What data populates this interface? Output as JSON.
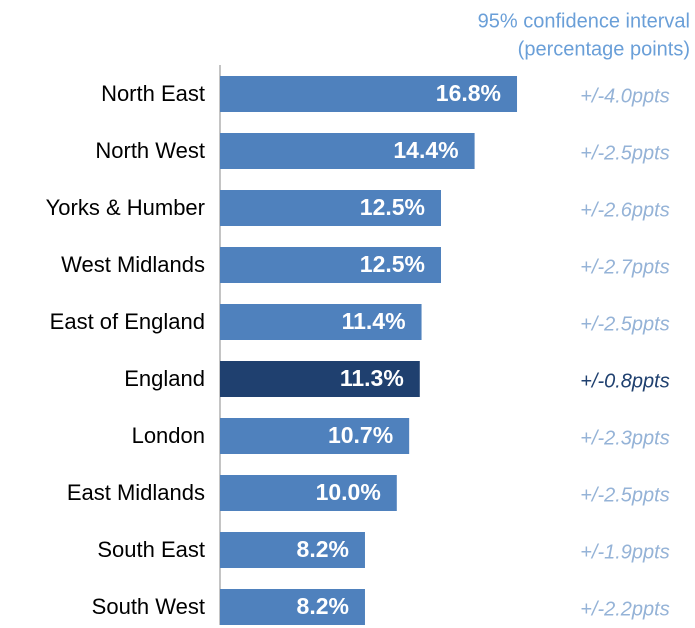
{
  "chart_data": {
    "type": "bar",
    "orientation": "horizontal",
    "subtitle": [
      "95% confidence interval",
      "(percentage points)"
    ],
    "categories": [
      "North East",
      "North West",
      "Yorks & Humber",
      "West Midlands",
      "East of England",
      "England",
      "London",
      "East Midlands",
      "South East",
      "South West"
    ],
    "values": [
      16.8,
      14.4,
      12.5,
      12.5,
      11.4,
      11.3,
      10.7,
      10.0,
      8.2,
      8.2
    ],
    "value_labels": [
      "16.8%",
      "14.4%",
      "12.5%",
      "12.5%",
      "11.4%",
      "11.3%",
      "10.7%",
      "10.0%",
      "8.2%",
      "8.2%"
    ],
    "annotations": [
      "+/-4.0ppts",
      "+/-2.5ppts",
      "+/-2.6ppts",
      "+/-2.7ppts",
      "+/-2.5ppts",
      "+/-0.8ppts",
      "+/-2.3ppts",
      "+/-2.5ppts",
      "+/-1.9ppts",
      "+/-2.2ppts"
    ],
    "colors": [
      "#4f81bd",
      "#4f81bd",
      "#4f81bd",
      "#4f81bd",
      "#4f81bd",
      "#1f406f",
      "#4f81bd",
      "#4f81bd",
      "#4f81bd",
      "#4f81bd"
    ],
    "annotation_colors": [
      "#95b3d7",
      "#95b3d7",
      "#95b3d7",
      "#95b3d7",
      "#95b3d7",
      "#1f406f",
      "#95b3d7",
      "#95b3d7",
      "#95b3d7",
      "#95b3d7"
    ]
  }
}
